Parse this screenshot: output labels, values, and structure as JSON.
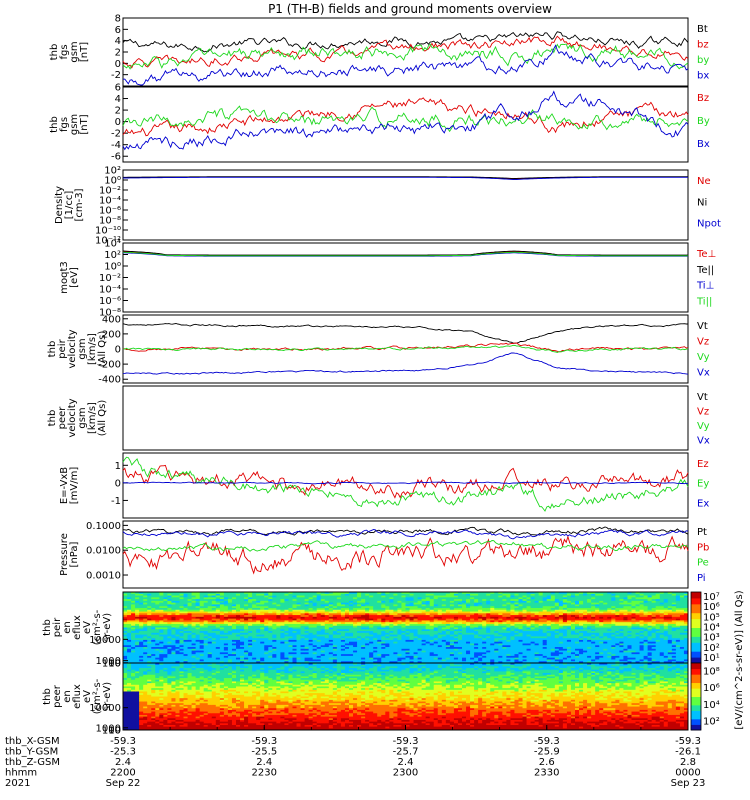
{
  "title": "P1 (TH-B) fields and ground moments overview",
  "colors": {
    "black": "#000000",
    "red": "#e00000",
    "green": "#1ed81e",
    "blue": "#0000d0"
  },
  "chart_data": [
    {
      "type": "line",
      "ylabel": [
        "thb",
        "fgs",
        "gsm",
        "[nT]"
      ],
      "ylim": [
        -4,
        8
      ],
      "yticks": [
        -2,
        0,
        2,
        4,
        6,
        8
      ],
      "series": [
        {
          "name": "Bt",
          "color": "black",
          "base": [
            3.5,
            3.0,
            3.2,
            3.6,
            3.4,
            3.8,
            4.2,
            3.9,
            3.6,
            4.5,
            5.2,
            4.0,
            3.4,
            4.2
          ],
          "noise": 0.5
        },
        {
          "name": "bz",
          "color": "red",
          "base": [
            0.2,
            0.0,
            0.8,
            1.4,
            1.6,
            1.5,
            2.5,
            3.0,
            2.8,
            3.4,
            4.0,
            3.0,
            2.0,
            1.5
          ],
          "noise": 0.6
        },
        {
          "name": "by",
          "color": "green",
          "base": [
            -0.5,
            0.0,
            1.0,
            1.5,
            1.8,
            2.0,
            2.5,
            2.0,
            1.6,
            1.5,
            2.0,
            2.0,
            1.6,
            1.5
          ],
          "noise": 0.8
        },
        {
          "name": "bx",
          "color": "blue",
          "base": [
            -3.0,
            -2.2,
            -1.8,
            -1.6,
            -1.5,
            -1.4,
            -1.2,
            -1.0,
            -0.8,
            -0.6,
            2.0,
            0.5,
            -0.5,
            -0.8
          ],
          "noise": 0.7
        }
      ]
    },
    {
      "type": "line",
      "ylabel": [
        "thb",
        "fgs",
        "gsm",
        "[nT]"
      ],
      "ylim": [
        -7,
        6
      ],
      "yticks": [
        -6,
        -4,
        -2,
        0,
        2,
        4,
        6
      ],
      "series": [
        {
          "name": "Bz",
          "color": "red",
          "base": [
            -2.5,
            -1.8,
            -1.0,
            0.0,
            1.0,
            2.0,
            2.8,
            2.5,
            2.0,
            2.0,
            -1.0,
            0.5,
            1.5,
            1.5
          ],
          "noise": 0.7
        },
        {
          "name": "By",
          "color": "green",
          "base": [
            -1.0,
            0.0,
            0.5,
            0.5,
            0.2,
            0.2,
            0.5,
            0.5,
            0.2,
            0.3,
            1.0,
            0.5,
            0.2,
            0.3
          ],
          "noise": 0.8
        },
        {
          "name": "Bx",
          "color": "blue",
          "base": [
            -4.5,
            -3.5,
            -3.0,
            -2.5,
            -2.0,
            -1.8,
            -1.5,
            -1.5,
            -1.0,
            2.0,
            4.0,
            3.0,
            0.5,
            -2.0
          ],
          "noise": 0.8
        }
      ]
    },
    {
      "type": "line",
      "log": true,
      "ylabel": [
        "Density",
        "[1/cc]",
        "[cm-3]"
      ],
      "ylim": [
        1e-12,
        100.0
      ],
      "yticks": [
        1e-12,
        1e-10,
        1e-08,
        1e-06,
        0.0001,
        0.01,
        1.0,
        100.0
      ],
      "ytick_labels": [
        "10⁻¹²",
        "10⁻¹⁰",
        "10⁻⁸",
        "10⁻⁶",
        "10⁻⁴",
        "10⁻²",
        "10⁰",
        "10²"
      ],
      "series": [
        {
          "name": "Ne",
          "color": "red",
          "base": [
            3,
            3.5,
            4,
            4,
            4,
            4,
            4,
            4,
            3.5,
            1.5,
            3,
            4,
            4,
            4
          ],
          "noise": 0
        },
        {
          "name": "Ni",
          "color": "black",
          "base": [
            3.5,
            4,
            4.5,
            4.5,
            4.5,
            4.5,
            4.5,
            4.5,
            4,
            2,
            3.5,
            4.5,
            4.5,
            4.5
          ],
          "noise": 0
        },
        {
          "name": "Npot",
          "color": "blue",
          "base": [
            2.5,
            3,
            3.5,
            3.5,
            3.5,
            3.5,
            3.5,
            3.5,
            3,
            1.2,
            2.5,
            3.5,
            3.5,
            3.5
          ],
          "noise": 0
        }
      ]
    },
    {
      "type": "line",
      "log": true,
      "ylabel": [
        "moqt3",
        "[eV]"
      ],
      "ylim": [
        1e-08,
        10000.0
      ],
      "yticks": [
        1e-08,
        1e-06,
        0.0001,
        0.01,
        1.0,
        100.0,
        10000.0
      ],
      "ytick_labels": [
        "10⁻⁸",
        "10⁻⁶",
        "10⁻⁴",
        "10⁻²",
        "10⁰",
        "10²",
        "10⁴"
      ],
      "series": [
        {
          "name": "Te⊥",
          "color": "red",
          "base": [
            300,
            80,
            70,
            70,
            70,
            70,
            70,
            70,
            80,
            300,
            80,
            70,
            70,
            70
          ],
          "noise": 0
        },
        {
          "name": "Te||",
          "color": "black",
          "base": [
            400,
            90,
            80,
            80,
            80,
            80,
            80,
            80,
            90,
            400,
            90,
            80,
            80,
            80
          ],
          "noise": 0
        },
        {
          "name": "Ti⊥",
          "color": "blue",
          "base": [
            200,
            60,
            50,
            50,
            50,
            50,
            50,
            50,
            60,
            200,
            60,
            50,
            50,
            50
          ],
          "noise": 0
        },
        {
          "name": "Ti||",
          "color": "green",
          "base": [
            250,
            70,
            60,
            60,
            60,
            60,
            60,
            60,
            70,
            250,
            70,
            60,
            60,
            60
          ],
          "noise": 0
        }
      ]
    },
    {
      "type": "line",
      "ylabel": [
        "thb",
        "peir",
        "velocity",
        "gsm",
        "[km/s]",
        "(All Qs)"
      ],
      "ylim": [
        -450,
        450
      ],
      "yticks": [
        -400,
        -200,
        0,
        200,
        400
      ],
      "series": [
        {
          "name": "Vt",
          "color": "black",
          "base": [
            330,
            320,
            315,
            310,
            305,
            300,
            290,
            280,
            220,
            80,
            240,
            300,
            310,
            320
          ],
          "noise": 8
        },
        {
          "name": "Vz",
          "color": "red",
          "base": [
            0,
            5,
            0,
            0,
            5,
            5,
            10,
            20,
            40,
            60,
            -20,
            0,
            0,
            0
          ],
          "noise": 12
        },
        {
          "name": "Vy",
          "color": "green",
          "base": [
            -5,
            -5,
            0,
            0,
            0,
            5,
            10,
            15,
            20,
            30,
            -40,
            -10,
            0,
            0
          ],
          "noise": 10
        },
        {
          "name": "Vx",
          "color": "blue",
          "base": [
            -330,
            -320,
            -315,
            -310,
            -305,
            -300,
            -290,
            -280,
            -220,
            -60,
            -240,
            -300,
            -310,
            -320
          ],
          "noise": 8
        }
      ]
    },
    {
      "type": "line",
      "ylabel": [
        "thb",
        "peer",
        "velocity",
        "gsm",
        "[km/s]",
        "(All Qs)"
      ],
      "ylim": [
        -450,
        450
      ],
      "yticks": [],
      "series": [
        {
          "name": "Vt",
          "color": "black",
          "base": [],
          "noise": 0
        },
        {
          "name": "Vz",
          "color": "red",
          "base": [],
          "noise": 0
        },
        {
          "name": "Vy",
          "color": "green",
          "base": [],
          "noise": 0
        },
        {
          "name": "Vx",
          "color": "blue",
          "base": [],
          "noise": 0
        }
      ]
    },
    {
      "type": "line",
      "ylabel": [
        "E=-VxB",
        "[mV/m]"
      ],
      "ylim": [
        -2,
        1.7
      ],
      "yticks": [
        -1,
        0,
        1
      ],
      "series": [
        {
          "name": "Ez",
          "color": "red",
          "base": [
            0.5,
            0.4,
            0.2,
            0.0,
            -0.1,
            -0.1,
            -0.2,
            -0.2,
            -0.3,
            0.3,
            -0.2,
            0.0,
            0.1,
            0.3
          ],
          "noise": 0.3
        },
        {
          "name": "Ey",
          "color": "green",
          "base": [
            1.0,
            0.4,
            0.2,
            -0.2,
            -0.4,
            -0.6,
            -0.9,
            -1.0,
            -0.8,
            -0.4,
            -1.2,
            -0.8,
            -0.6,
            0.0
          ],
          "noise": 0.25
        },
        {
          "name": "Ex",
          "color": "blue",
          "base": [
            0.0,
            0.0,
            0.0,
            0.0,
            0.0,
            0.0,
            0.0,
            0.0,
            0.0,
            0.0,
            0.0,
            0.0,
            0.0,
            0.0
          ],
          "noise": 0.02
        }
      ]
    },
    {
      "type": "line",
      "log": true,
      "ylabel": [
        "Pressure",
        "[nPa]"
      ],
      "ylim": [
        0.0003,
        0.15
      ],
      "yticks": [
        0.001,
        0.01,
        0.1
      ],
      "ytick_labels": [
        "0.0010",
        "0.0100",
        "0.1000"
      ],
      "series": [
        {
          "name": "Pt",
          "color": "black",
          "base": [
            0.06,
            0.055,
            0.055,
            0.055,
            0.055,
            0.055,
            0.06,
            0.06,
            0.06,
            0.05,
            0.055,
            0.06,
            0.06,
            0.06
          ],
          "noise": 0.06
        },
        {
          "name": "Pb",
          "color": "red",
          "base": [
            0.004,
            0.005,
            0.006,
            0.004,
            0.005,
            0.006,
            0.007,
            0.008,
            0.006,
            0.004,
            0.01,
            0.01,
            0.008,
            0.01
          ],
          "noise": 0.3
        },
        {
          "name": "Pe",
          "color": "green",
          "base": [
            0.01,
            0.012,
            0.013,
            0.013,
            0.014,
            0.014,
            0.015,
            0.015,
            0.016,
            0.02,
            0.01,
            0.013,
            0.014,
            0.015
          ],
          "noise": 0.08
        },
        {
          "name": "Pi",
          "color": "blue",
          "base": [
            0.05,
            0.045,
            0.045,
            0.045,
            0.045,
            0.045,
            0.048,
            0.05,
            0.048,
            0.03,
            0.04,
            0.048,
            0.05,
            0.05
          ],
          "noise": 0.06
        }
      ]
    },
    {
      "type": "heatmap",
      "ylabel": [
        "thb",
        "peir",
        "en",
        "eflux",
        "eV",
        "(cm²-s-",
        "sr-eV)"
      ],
      "ylim": [
        5,
        30000
      ],
      "yticks": [
        10,
        100,
        1000,
        10000
      ],
      "ytick_labels": [
        "10",
        "100",
        "1000",
        "10000"
      ],
      "colorbar": {
        "labels": [
          "10¹",
          "10²",
          "10³",
          "10⁴",
          "10⁵",
          "10⁶",
          "10⁷"
        ]
      }
    },
    {
      "type": "heatmap",
      "ylabel": [
        "thb",
        "peer",
        "en",
        "eflux",
        "eV",
        "(cm²-s-",
        "sr-eV)"
      ],
      "ylim": [
        5,
        30000
      ],
      "yticks": [
        10,
        100,
        1000,
        10000
      ],
      "ytick_labels": [
        "10",
        "100",
        "1000",
        "10000"
      ],
      "colorbar": {
        "labels": [
          "10²",
          "10⁴",
          "10⁶",
          "10⁸"
        ]
      }
    }
  ],
  "colorbar_title": "[eV/(cm^2-s-sr-eV)] (All Qs)",
  "xaxis": {
    "rows": [
      {
        "label": "thb_X-GSM",
        "values": [
          "-59.3",
          "-59.3",
          "-59.3",
          "-59.3",
          "-59.3"
        ]
      },
      {
        "label": "thb_Y-GSM",
        "values": [
          "-25.3",
          "-25.5",
          "-25.7",
          "-25.9",
          "-26.1"
        ]
      },
      {
        "label": "thb_Z-GSM",
        "values": [
          "2.4",
          "2.4",
          "2.4",
          "2.6",
          "2.8"
        ]
      },
      {
        "label": "hhmm",
        "values": [
          "2200",
          "2230",
          "2300",
          "2330",
          "0000"
        ]
      },
      {
        "label": "2021",
        "values": [
          "Sep 22",
          "",
          "",
          "",
          "Sep 23"
        ]
      }
    ]
  }
}
